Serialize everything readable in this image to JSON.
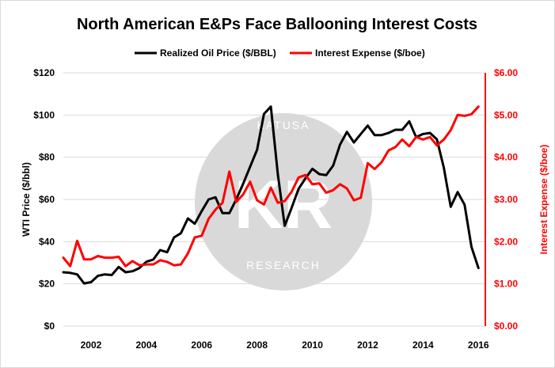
{
  "chart_data": {
    "type": "line",
    "title": "North American E&Ps Face Ballooning Interest Costs",
    "ylabel_left": "WTI Price ($/bbl)",
    "ylabel_right": "Interest Expense ($/boe)",
    "y_left_ticks": [
      "$0",
      "$20",
      "$40",
      "$60",
      "$80",
      "$100",
      "$120"
    ],
    "y_right_ticks": [
      "$0.00",
      "$1.00",
      "$2.00",
      "$3.00",
      "$4.00",
      "$5.00",
      "$6.00"
    ],
    "x_ticks": [
      "2002",
      "2004",
      "2006",
      "2008",
      "2010",
      "2012",
      "2014",
      "2016"
    ],
    "xlim": [
      2001.0,
      2016.25
    ],
    "ylim_left": [
      0,
      120
    ],
    "ylim_right": [
      0,
      6
    ],
    "legend_position": "top",
    "grid": "horizontal",
    "series": [
      {
        "name": "Realized Oil Price ($/BBL)",
        "axis": "left",
        "color": "#000000",
        "x": [
          2001.0,
          2001.25,
          2001.5,
          2001.75,
          2002.0,
          2002.25,
          2002.5,
          2002.75,
          2003.0,
          2003.25,
          2003.5,
          2003.75,
          2004.0,
          2004.25,
          2004.5,
          2004.75,
          2005.0,
          2005.25,
          2005.5,
          2005.75,
          2006.0,
          2006.25,
          2006.5,
          2006.75,
          2007.0,
          2007.25,
          2007.5,
          2007.75,
          2008.0,
          2008.25,
          2008.5,
          2008.75,
          2009.0,
          2009.25,
          2009.5,
          2009.75,
          2010.0,
          2010.25,
          2010.5,
          2010.75,
          2011.0,
          2011.25,
          2011.5,
          2011.75,
          2012.0,
          2012.25,
          2012.5,
          2012.75,
          2013.0,
          2013.25,
          2013.5,
          2013.75,
          2014.0,
          2014.25,
          2014.5,
          2014.75,
          2015.0,
          2015.25,
          2015.5,
          2015.75,
          2016.0
        ],
        "values": [
          25.5,
          25.2,
          24.5,
          20.2,
          20.8,
          23.8,
          24.5,
          24.2,
          28,
          25.5,
          26,
          27.5,
          30.5,
          31.5,
          36,
          35,
          42,
          44,
          51,
          48.5,
          54.5,
          60,
          61,
          53.5,
          53.5,
          60,
          67.5,
          75.5,
          83.5,
          100.5,
          104,
          72,
          47.5,
          56,
          65,
          70,
          74.5,
          72,
          71.5,
          76,
          86,
          92,
          87,
          91,
          95,
          90.5,
          90.5,
          91.5,
          93,
          93,
          97,
          89.5,
          91,
          91.5,
          88.5,
          75,
          56.5,
          63.5,
          57.5,
          37.5,
          27.5
        ]
      },
      {
        "name": "Interest Expense ($/boe)",
        "axis": "right",
        "color": "#ff0000",
        "x": [
          2001.0,
          2001.25,
          2001.5,
          2001.75,
          2002.0,
          2002.25,
          2002.5,
          2002.75,
          2003.0,
          2003.25,
          2003.5,
          2003.75,
          2004.0,
          2004.25,
          2004.5,
          2004.75,
          2005.0,
          2005.25,
          2005.5,
          2005.75,
          2006.0,
          2006.25,
          2006.5,
          2006.75,
          2007.0,
          2007.25,
          2007.5,
          2007.75,
          2008.0,
          2008.25,
          2008.5,
          2008.75,
          2009.0,
          2009.25,
          2009.5,
          2009.75,
          2010.0,
          2010.25,
          2010.5,
          2010.75,
          2011.0,
          2011.25,
          2011.5,
          2011.75,
          2012.0,
          2012.25,
          2012.5,
          2012.75,
          2013.0,
          2013.25,
          2013.5,
          2013.75,
          2014.0,
          2014.25,
          2014.5,
          2014.75,
          2015.0,
          2015.25,
          2015.5,
          2015.75,
          2016.0
        ],
        "values": [
          1.62,
          1.42,
          2.02,
          1.58,
          1.58,
          1.66,
          1.62,
          1.62,
          1.64,
          1.42,
          1.54,
          1.44,
          1.46,
          1.46,
          1.56,
          1.52,
          1.44,
          1.46,
          1.72,
          2.1,
          2.14,
          2.54,
          2.76,
          2.92,
          3.66,
          2.94,
          3.12,
          3.42,
          2.98,
          2.88,
          3.28,
          2.92,
          2.96,
          3.18,
          3.52,
          3.58,
          3.36,
          3.38,
          3.16,
          3.22,
          3.36,
          3.26,
          2.98,
          3.04,
          3.86,
          3.72,
          3.88,
          4.16,
          4.24,
          4.42,
          4.26,
          4.48,
          4.42,
          4.48,
          4.28,
          4.42,
          4.64,
          5.0,
          4.98,
          5.02,
          5.2
        ]
      }
    ]
  },
  "watermark": {
    "top_text": "KATUSA",
    "monogram": "KR",
    "bottom_text": "RESEARCH",
    "color": "#d9d9d9"
  },
  "colors": {
    "price_line": "#000000",
    "interest_line": "#ff0000",
    "grid": "#d9d9d9",
    "right_axis": "#ff0000"
  }
}
